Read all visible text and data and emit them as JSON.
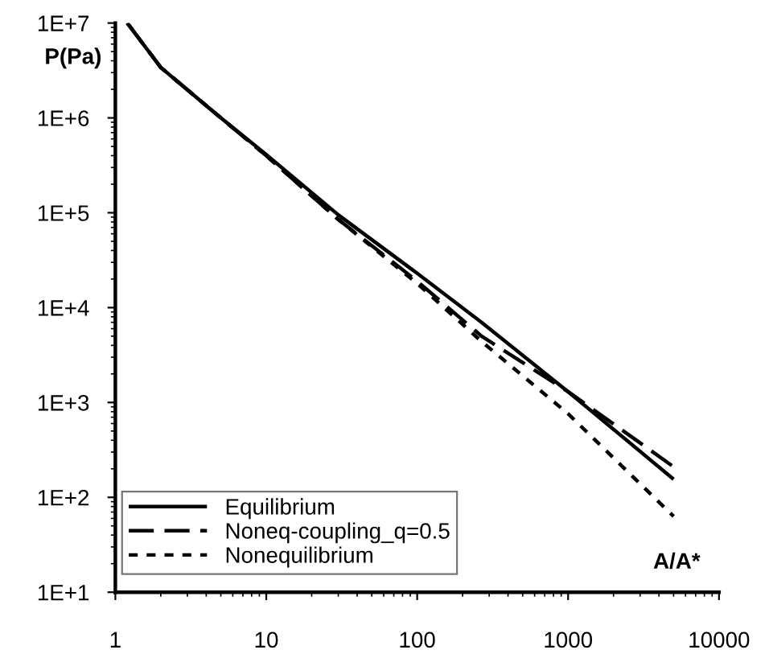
{
  "chart_data": {
    "type": "line",
    "xlabel": "A/A*",
    "ylabel": "P(Pa)",
    "log": "xy",
    "xlim": [
      1,
      10000
    ],
    "ylim": [
      10,
      10000000
    ],
    "xticks": [
      1,
      10,
      100,
      1000,
      10000
    ],
    "yticks": [
      {
        "value": 10,
        "label": "1E+1"
      },
      {
        "value": 100,
        "label": "1E+2"
      },
      {
        "value": 1000,
        "label": "1E+3"
      },
      {
        "value": 10000,
        "label": "1E+4"
      },
      {
        "value": 100000,
        "label": "1E+5"
      },
      {
        "value": 1000000,
        "label": "1E+6"
      },
      {
        "value": 10000000,
        "label": "1E+7"
      }
    ],
    "legend": "bottom left",
    "grid": false,
    "series": [
      {
        "name": "Equilibrium",
        "color": "#000000",
        "line_style": "solid",
        "x": [
          1.2,
          2,
          5,
          10,
          30,
          100,
          267,
          1000,
          5000
        ],
        "values": [
          10000000,
          3400000,
          1000000,
          410000,
          95000,
          23000,
          7000,
          1300,
          155
        ]
      },
      {
        "name": "Noneq-coupling_q=0.5",
        "color": "#000000",
        "line_style": "dashed",
        "x": [
          1.2,
          2,
          5,
          10,
          30,
          100,
          267,
          1000,
          5000
        ],
        "values": [
          10000000,
          3400000,
          1000000,
          400000,
          85000,
          19000,
          5000,
          1300,
          210
        ]
      },
      {
        "name": "Nonequilibrium",
        "color": "#000000",
        "line_style": "dotted",
        "x": [
          1.2,
          2,
          5,
          10,
          30,
          100,
          267,
          1000,
          5000
        ],
        "values": [
          10000000,
          3400000,
          1000000,
          400000,
          85000,
          18000,
          4400,
          760,
          63
        ]
      }
    ]
  }
}
